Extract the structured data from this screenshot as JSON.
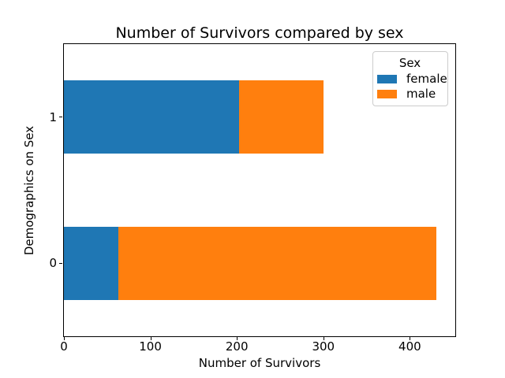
{
  "chart_data": {
    "type": "bar",
    "orientation": "horizontal",
    "stacked": true,
    "title": "Number of Survivors compared by sex",
    "xlabel": "Number of Survivors",
    "ylabel": "Demographics on Sex",
    "categories": [
      0,
      1
    ],
    "series": [
      {
        "name": "female",
        "color": "#1f77b4",
        "values": [
          63,
          203
        ]
      },
      {
        "name": "male",
        "color": "#ff7f0e",
        "values": [
          368,
          97
        ]
      }
    ],
    "xticks": [
      0,
      100,
      200,
      300,
      400
    ],
    "yticks": [
      0,
      1
    ],
    "xlim": [
      0,
      452.6
    ],
    "ylim": [
      -0.5,
      1.5
    ],
    "bar_height": 0.5,
    "grid": false,
    "legend": {
      "title": "Sex",
      "position": "upper right",
      "entries": [
        "female",
        "male"
      ]
    },
    "colors": {
      "spine": "#000000",
      "text": "#000000",
      "legend_border": "#cccccc"
    }
  }
}
